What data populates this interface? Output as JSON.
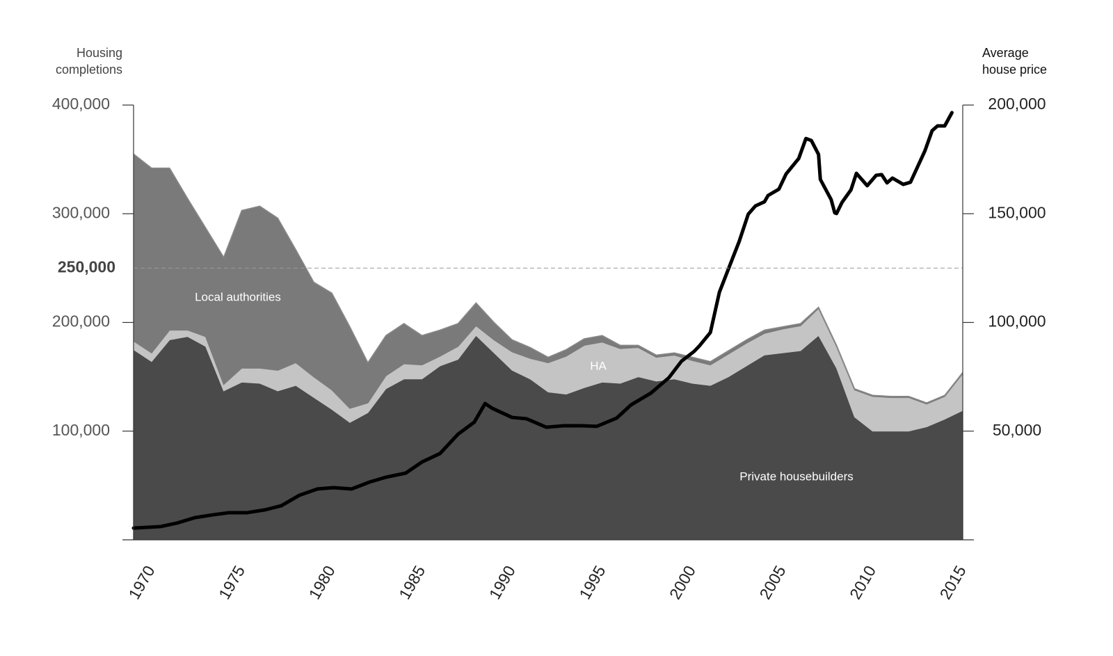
{
  "chart_data": {
    "type": "area",
    "y_label": "Housing completions",
    "y2_label": "Average house price",
    "x": [
      1970,
      1971,
      1972,
      1973,
      1974,
      1975,
      1976,
      1977,
      1978,
      1979,
      1980,
      1981,
      1982,
      1983,
      1984,
      1985,
      1986,
      1987,
      1988,
      1989,
      1990,
      1991,
      1992,
      1993,
      1994,
      1995,
      1996,
      1997,
      1998,
      1999,
      2000,
      2001,
      2002,
      2003,
      2004,
      2005,
      2006,
      2007,
      2008,
      2009,
      2010,
      2011,
      2012,
      2013,
      2014,
      2015,
      2016
    ],
    "xlim": [
      1970,
      2016
    ],
    "xticks": [
      1970,
      1975,
      1980,
      1985,
      1990,
      1995,
      2000,
      2005,
      2010,
      2015
    ],
    "ylim": [
      0,
      400000
    ],
    "yticks": [
      {
        "value": 100000,
        "label": "100,000"
      },
      {
        "value": 200000,
        "label": "200,000"
      },
      {
        "value": 300000,
        "label": "300,000"
      },
      {
        "value": 400000,
        "label": "400,000"
      }
    ],
    "y2lim": [
      0,
      200000
    ],
    "y2ticks": [
      {
        "value": 50000,
        "label": "50,000"
      },
      {
        "value": 100000,
        "label": "100,000"
      },
      {
        "value": 150000,
        "label": "150,000"
      },
      {
        "value": 200000,
        "label": "200,000"
      }
    ],
    "reference_line": {
      "value": 250000,
      "label": "250,000"
    },
    "series": [
      {
        "name": "Private housebuilders",
        "color": "#4a4a4a",
        "values": [
          175000,
          164000,
          184000,
          187000,
          178000,
          137000,
          145000,
          144000,
          137000,
          142000,
          131000,
          120000,
          108000,
          117000,
          139000,
          148000,
          148000,
          160000,
          166000,
          188000,
          172000,
          156000,
          148000,
          136000,
          134000,
          140000,
          145000,
          144000,
          150000,
          146000,
          148000,
          144000,
          142000,
          150000,
          160000,
          170000,
          172000,
          174000,
          188000,
          158000,
          113000,
          100000,
          100000,
          100000,
          104000,
          111000,
          119000
        ]
      },
      {
        "name": "HA",
        "color": "#c4c4c4",
        "values": [
          8000,
          8000,
          9000,
          6000,
          9000,
          6000,
          13000,
          14000,
          19000,
          21000,
          19000,
          18000,
          13000,
          9000,
          12000,
          14000,
          13000,
          9000,
          12000,
          9000,
          12000,
          17000,
          19000,
          27000,
          35000,
          39000,
          37000,
          32000,
          27000,
          22000,
          22000,
          21000,
          19000,
          21000,
          21000,
          20000,
          22000,
          23000,
          25000,
          20000,
          25000,
          32000,
          31000,
          31000,
          21000,
          21000,
          34000
        ]
      },
      {
        "name": "Local authorities",
        "color": "#7a7a7a",
        "values": [
          172000,
          170000,
          149000,
          121000,
          100000,
          117000,
          145000,
          149000,
          140000,
          104000,
          87000,
          89000,
          75000,
          37000,
          37000,
          37000,
          27000,
          24000,
          21000,
          21000,
          16000,
          11000,
          10000,
          5000,
          6000,
          6000,
          6000,
          3000,
          2000,
          2000,
          2000,
          3000,
          3000,
          3000,
          3000,
          3000,
          2000,
          2000,
          1000,
          1000,
          1000,
          1000,
          1000,
          1000,
          1000,
          1000,
          1000
        ]
      },
      {
        "type": "line",
        "axis": "y2",
        "color": "#000000",
        "x": [
          1970.0,
          1971.5,
          1972.4,
          1973.4,
          1974.4,
          1975.3,
          1976.3,
          1977.3,
          1978.2,
          1979.2,
          1980.2,
          1981.1,
          1982.1,
          1983.1,
          1984.0,
          1985.1,
          1986.0,
          1987.0,
          1988.0,
          1988.9,
          1989.5,
          1989.9,
          1991.0,
          1991.8,
          1992.9,
          1993.9,
          1994.8,
          1995.7,
          1996.8,
          1997.6,
          1998.7,
          1999.7,
          2000.4,
          2001.1,
          2001.4,
          2002.0,
          2002.5,
          2003.1,
          2003.6,
          2004.1,
          2004.5,
          2005.0,
          2005.2,
          2005.8,
          2006.2,
          2006.9,
          2007.3,
          2007.6,
          2008.0,
          2008.1,
          2008.7,
          2008.9,
          2009.0,
          2009.3,
          2009.8,
          2010.1,
          2010.7,
          2011.2,
          2011.5,
          2011.8,
          2012.1,
          2012.7,
          2013.1,
          2013.9,
          2014.3,
          2014.6,
          2015.0,
          2015.4
        ],
        "values": [
          5400,
          6100,
          7700,
          10200,
          11500,
          12500,
          12500,
          13800,
          15700,
          20500,
          23400,
          24000,
          23400,
          26600,
          28800,
          30700,
          35800,
          39700,
          48600,
          54100,
          62700,
          60500,
          56300,
          55700,
          51800,
          52500,
          52500,
          52200,
          56000,
          62100,
          67500,
          74600,
          82200,
          86700,
          89300,
          95400,
          113900,
          126700,
          137300,
          149800,
          153600,
          155500,
          158400,
          161300,
          168300,
          175400,
          184600,
          183700,
          177300,
          165800,
          156500,
          150400,
          150100,
          155200,
          161000,
          168600,
          162900,
          167700,
          168000,
          164200,
          166400,
          163500,
          164500,
          178900,
          188200,
          190400,
          190400,
          196500
        ]
      }
    ]
  }
}
